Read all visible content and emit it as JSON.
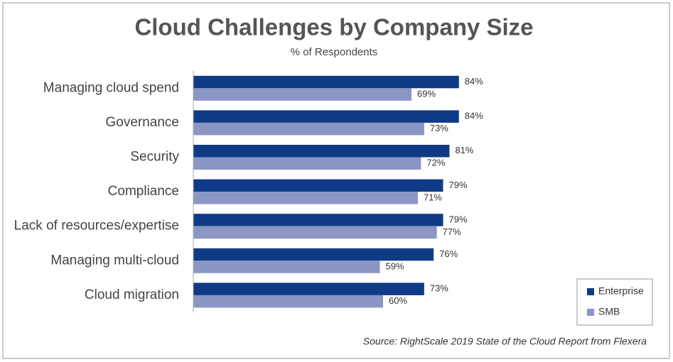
{
  "chart_data": {
    "type": "bar",
    "orientation": "horizontal",
    "title": "Cloud Challenges by Company Size",
    "subtitle": "% of Respondents",
    "source": "Source: RightScale 2019 State of the Cloud Report from Flexera",
    "categories": [
      "Managing cloud spend",
      "Governance",
      "Security",
      "Compliance",
      "Lack of resources/expertise",
      "Managing multi-cloud",
      "Cloud migration"
    ],
    "series": [
      {
        "name": "Enterprise",
        "color": "#0f3b86",
        "values": [
          84,
          84,
          81,
          79,
          79,
          76,
          73
        ],
        "value_labels": [
          "84%",
          "84%",
          "81%",
          "79%",
          "79%",
          "76%",
          "73%"
        ]
      },
      {
        "name": "SMB",
        "color": "#8b96c4",
        "values": [
          69,
          73,
          72,
          71,
          77,
          59,
          60
        ],
        "value_labels": [
          "69%",
          "73%",
          "72%",
          "71%",
          "77%",
          "59%",
          "60%"
        ]
      }
    ],
    "legend": "bottom-right"
  }
}
